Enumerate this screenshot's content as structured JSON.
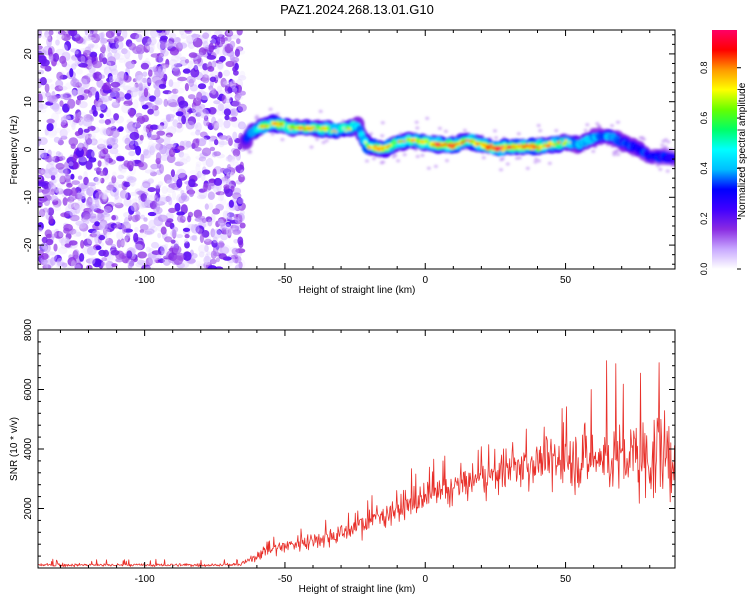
{
  "title": "PAZ1.2024.268.13.01.G10",
  "chart_data": [
    {
      "type": "heatmap",
      "xlabel": "Height of straight line (km)",
      "ylabel": "Frequency (Hz)",
      "xlim": [
        -138,
        89
      ],
      "ylim": [
        -25,
        25
      ],
      "xticks": [
        -100,
        -50,
        0,
        50
      ],
      "yticks": [
        -20,
        -10,
        0,
        10,
        20
      ],
      "colorbar": {
        "label": "Normalized spectral amplitude",
        "range": [
          0.0,
          0.95
        ],
        "ticks": [
          0.0,
          0.2,
          0.4,
          0.6,
          0.8
        ],
        "colors": [
          "#ffffff",
          "#c8a8ff",
          "#8a2be2",
          "#4000ff",
          "#0000ff",
          "#00bfff",
          "#00ffff",
          "#00ff66",
          "#66ff00",
          "#ffff00",
          "#ff9900",
          "#ff0000",
          "#ff0066"
        ]
      },
      "noise_region": {
        "x_range": [
          -138,
          -65
        ],
        "peak_amplitude": 0.2
      },
      "ridge": [
        {
          "x": -64,
          "f": 2.0,
          "a": 0.5
        },
        {
          "x": -62,
          "f": 3.5,
          "a": 0.6
        },
        {
          "x": -58,
          "f": 5.0,
          "a": 0.75
        },
        {
          "x": -53,
          "f": 5.5,
          "a": 0.8
        },
        {
          "x": -48,
          "f": 4.5,
          "a": 0.75
        },
        {
          "x": -42,
          "f": 4.5,
          "a": 0.75
        },
        {
          "x": -36,
          "f": 4.3,
          "a": 0.75
        },
        {
          "x": -32,
          "f": 4.0,
          "a": 0.7
        },
        {
          "x": -27,
          "f": 4.3,
          "a": 0.7
        },
        {
          "x": -24,
          "f": 5.0,
          "a": 0.65
        },
        {
          "x": -22,
          "f": 2.0,
          "a": 0.6
        },
        {
          "x": -20,
          "f": 0.5,
          "a": 0.8
        },
        {
          "x": -15,
          "f": 0.2,
          "a": 0.85
        },
        {
          "x": -10,
          "f": 1.5,
          "a": 0.7
        },
        {
          "x": -5,
          "f": 2.0,
          "a": 0.75
        },
        {
          "x": 0,
          "f": 1.5,
          "a": 0.75
        },
        {
          "x": 5,
          "f": 1.0,
          "a": 0.85
        },
        {
          "x": 10,
          "f": 0.8,
          "a": 0.9
        },
        {
          "x": 15,
          "f": 2.0,
          "a": 0.75
        },
        {
          "x": 20,
          "f": 1.0,
          "a": 0.8
        },
        {
          "x": 25,
          "f": 0.3,
          "a": 0.9
        },
        {
          "x": 30,
          "f": 0.5,
          "a": 0.85
        },
        {
          "x": 35,
          "f": 0.7,
          "a": 0.85
        },
        {
          "x": 40,
          "f": 0.5,
          "a": 0.85
        },
        {
          "x": 45,
          "f": 1.0,
          "a": 0.75
        },
        {
          "x": 50,
          "f": 1.5,
          "a": 0.7
        },
        {
          "x": 55,
          "f": 1.0,
          "a": 0.6
        },
        {
          "x": 60,
          "f": 2.5,
          "a": 0.6
        },
        {
          "x": 65,
          "f": 3.0,
          "a": 0.55
        },
        {
          "x": 70,
          "f": 1.5,
          "a": 0.5
        },
        {
          "x": 75,
          "f": 0.5,
          "a": 0.5
        },
        {
          "x": 80,
          "f": -1.5,
          "a": 0.45
        },
        {
          "x": 85,
          "f": -1.5,
          "a": 0.45
        },
        {
          "x": 89,
          "f": -2.0,
          "a": 0.4
        }
      ]
    },
    {
      "type": "line",
      "xlabel": "Height of straight line (km)",
      "ylabel": "SNR (10 * v/v)",
      "xlim": [
        -138,
        89
      ],
      "ylim": [
        0,
        8000
      ],
      "xticks": [
        -100,
        -50,
        0,
        50
      ],
      "yticks": [
        2000,
        4000,
        6000,
        8000
      ],
      "series": [
        {
          "color": "#e8302a",
          "x": [
            -138,
            -120,
            -100,
            -80,
            -66,
            -62,
            -58,
            -50,
            -40,
            -30,
            -20,
            -10,
            0,
            10,
            20,
            30,
            40,
            50,
            60,
            70,
            80,
            89
          ],
          "mean": [
            100,
            100,
            100,
            100,
            110,
            300,
            550,
            750,
            950,
            1150,
            1600,
            2000,
            2300,
            2700,
            3000,
            3300,
            3600,
            3600,
            3700,
            3700,
            3700,
            3800
          ],
          "spread": [
            60,
            60,
            60,
            60,
            60,
            200,
            250,
            300,
            350,
            400,
            450,
            550,
            600,
            650,
            700,
            750,
            900,
            1100,
            1300,
            1500,
            1700,
            1800
          ],
          "peak": [
            300,
            300,
            300,
            300,
            300,
            700,
            900,
            1300,
            1500,
            1900,
            2400,
            3200,
            3700,
            3900,
            4200,
            4300,
            5000,
            5600,
            6800,
            7200,
            7900,
            7900
          ]
        }
      ]
    }
  ]
}
